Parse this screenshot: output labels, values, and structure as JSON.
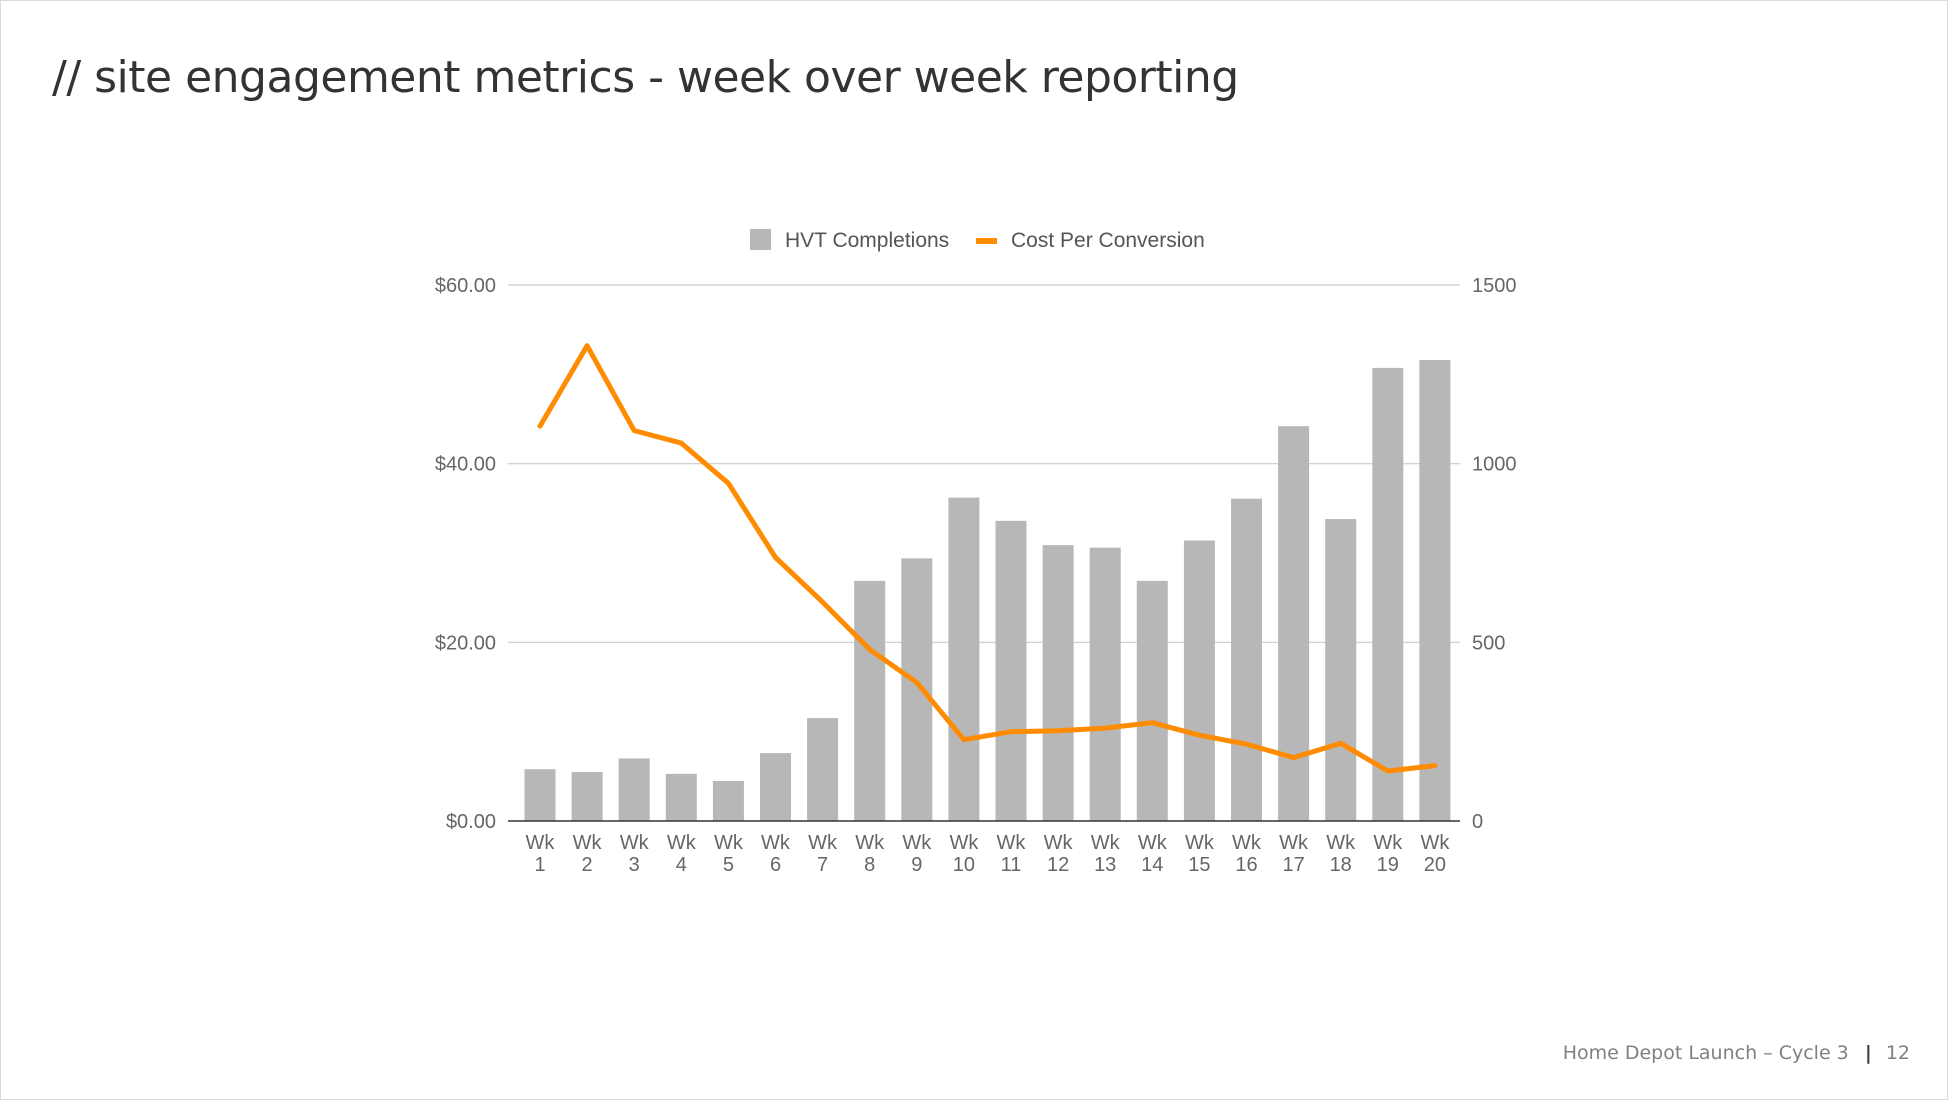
{
  "slide": {
    "title": "// site engagement metrics - week over week reporting",
    "footer_text": "Home Depot Launch – Cycle  3",
    "footer_separator": "|",
    "page_number": "12"
  },
  "colors": {
    "bar": "#b7b7b7",
    "line": "#ff8c00",
    "grid": "#cccccc",
    "axis_base": "#333333"
  },
  "chart_data": {
    "type": "bar",
    "title": "",
    "xlabel": "",
    "ylabel_left": "",
    "ylabel_right": "",
    "categories": [
      [
        "Wk",
        "1"
      ],
      [
        "Wk",
        "2"
      ],
      [
        "Wk",
        "3"
      ],
      [
        "Wk",
        "4"
      ],
      [
        "Wk",
        "5"
      ],
      [
        "Wk",
        "6"
      ],
      [
        "Wk",
        "7"
      ],
      [
        "Wk",
        "8"
      ],
      [
        "Wk",
        "9"
      ],
      [
        "Wk",
        "10"
      ],
      [
        "Wk",
        "11"
      ],
      [
        "Wk",
        "12"
      ],
      [
        "Wk",
        "13"
      ],
      [
        "Wk",
        "14"
      ],
      [
        "Wk",
        "15"
      ],
      [
        "Wk",
        "16"
      ],
      [
        "Wk",
        "17"
      ],
      [
        "Wk",
        "18"
      ],
      [
        "Wk",
        "19"
      ],
      [
        "Wk",
        "20"
      ]
    ],
    "legend_position": "top",
    "grid": true,
    "left_axis": {
      "min": 0,
      "max": 60,
      "ticks": [
        0,
        20,
        40,
        60
      ],
      "tick_labels": [
        "$0.00",
        "$20.00",
        "$40.00",
        "$60.00"
      ]
    },
    "right_axis": {
      "min": 0,
      "max": 1500,
      "ticks": [
        0,
        500,
        1000,
        1500
      ],
      "tick_labels": [
        "0",
        "500",
        "1000",
        "1500"
      ]
    },
    "series": [
      {
        "name": "HVT Completions",
        "type": "bar",
        "axis": "right",
        "values": [
          145,
          137,
          175,
          132,
          112,
          190,
          288,
          672,
          735,
          905,
          840,
          772,
          765,
          672,
          785,
          902,
          1105,
          845,
          1268,
          1290
        ]
      },
      {
        "name": "Cost Per Conversion",
        "type": "line",
        "axis": "left",
        "values": [
          44.2,
          53.2,
          43.7,
          42.3,
          37.8,
          29.5,
          24.5,
          19.2,
          15.5,
          9.1,
          10.0,
          10.1,
          10.4,
          11.0,
          9.6,
          8.6,
          7.1,
          8.7,
          5.6,
          6.2
        ]
      }
    ]
  }
}
